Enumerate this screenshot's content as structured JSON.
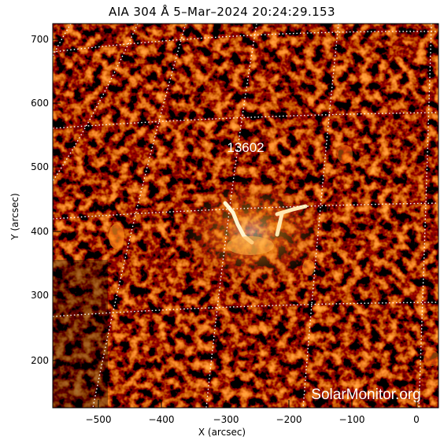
{
  "title": "AIA 304 Å  5–Mar–2024 20:24:29.153",
  "xlabel": "X (arcsec)",
  "ylabel": "Y (arcsec)",
  "active_region": "13602",
  "watermark": "SolarMonitor.org",
  "colors": {
    "background": "#000000",
    "plasma_dim": "#3b0800",
    "plasma_mid": "#a02a00",
    "plasma_bright": "#ff9a1e",
    "plasma_peak": "#fff6cf",
    "grid": "#ffffff"
  },
  "axes": {
    "x_ticks": [
      "−500",
      "−400",
      "−300",
      "−200",
      "−100",
      "0"
    ],
    "y_ticks": [
      "200",
      "300",
      "400",
      "500",
      "600",
      "700"
    ]
  }
}
